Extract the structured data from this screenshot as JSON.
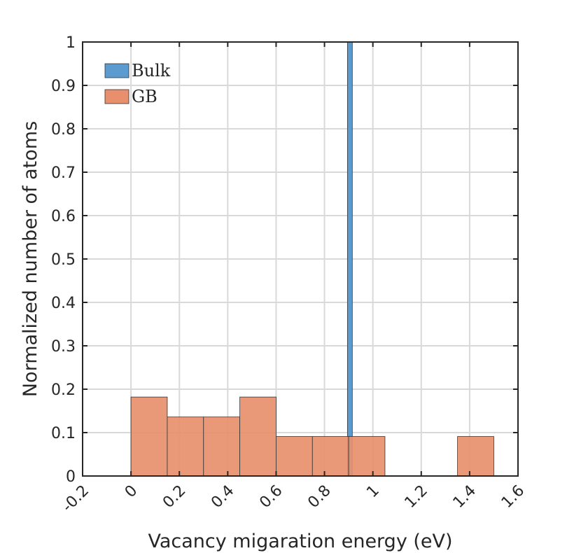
{
  "chart_data": {
    "type": "bar",
    "xlabel": "Vacancy migaration energy (eV)",
    "ylabel": "Normalized number of atoms",
    "xlim": [
      -0.2,
      1.6
    ],
    "ylim": [
      0,
      1
    ],
    "x_ticks": [
      "-0.2",
      "0",
      "0.2",
      "0.4",
      "0.6",
      "0.8",
      "1",
      "1.2",
      "1.4",
      "1.6"
    ],
    "x_tick_values": [
      -0.2,
      0,
      0.2,
      0.4,
      0.6,
      0.8,
      1,
      1.2,
      1.4,
      1.6
    ],
    "y_ticks": [
      "0",
      "0.1",
      "0.2",
      "0.3",
      "0.4",
      "0.5",
      "0.6",
      "0.7",
      "0.8",
      "0.9",
      "1"
    ],
    "y_tick_values": [
      0,
      0.1,
      0.2,
      0.3,
      0.4,
      0.5,
      0.6,
      0.7,
      0.8,
      0.9,
      1
    ],
    "grid": true,
    "legend": "top-left",
    "series": [
      {
        "name": "Bulk",
        "color": "#5b9bd0",
        "bins": [
          {
            "x0": 0.895,
            "x1": 0.915,
            "value": 1.0
          }
        ]
      },
      {
        "name": "GB",
        "color": "#e8906d",
        "bins": [
          {
            "x0": 0.0,
            "x1": 0.15,
            "value": 0.182
          },
          {
            "x0": 0.15,
            "x1": 0.3,
            "value": 0.136
          },
          {
            "x0": 0.3,
            "x1": 0.45,
            "value": 0.136
          },
          {
            "x0": 0.45,
            "x1": 0.6,
            "value": 0.182
          },
          {
            "x0": 0.6,
            "x1": 0.75,
            "value": 0.091
          },
          {
            "x0": 0.75,
            "x1": 0.9,
            "value": 0.091
          },
          {
            "x0": 0.9,
            "x1": 1.05,
            "value": 0.091
          },
          {
            "x0": 1.35,
            "x1": 1.5,
            "value": 0.091
          }
        ]
      }
    ]
  }
}
